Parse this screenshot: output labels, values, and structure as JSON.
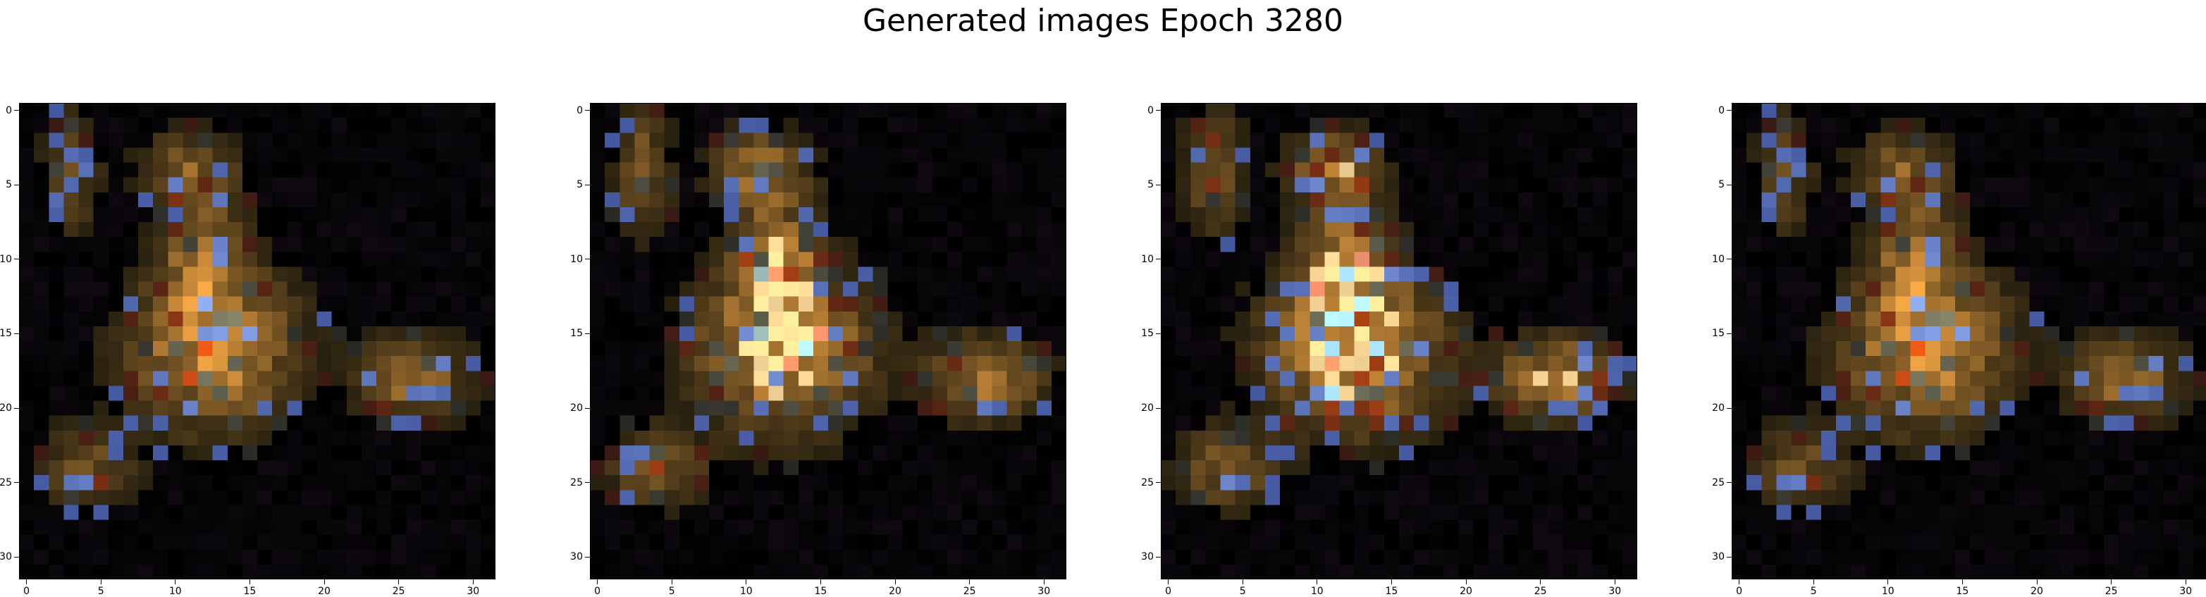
{
  "title": "Generated images Epoch 3280",
  "image_grid_size": [
    32,
    32
  ],
  "axis": {
    "xticks": [
      "0",
      "5",
      "10",
      "15",
      "20",
      "25",
      "30"
    ],
    "yticks": [
      "0",
      "5",
      "10",
      "15",
      "20",
      "25",
      "30"
    ]
  },
  "panels": [
    {
      "name": "generated-image-1",
      "seed": 11,
      "scale": 0.85,
      "palette": "warm-dim"
    },
    {
      "name": "generated-image-2",
      "seed": 29,
      "scale": 1.0,
      "palette": "warm-bright"
    },
    {
      "name": "generated-image-3",
      "seed": 47,
      "scale": 1.05,
      "palette": "warm-bright"
    },
    {
      "name": "generated-image-4",
      "seed": 11,
      "scale": 0.85,
      "palette": "warm-dim"
    }
  ]
}
